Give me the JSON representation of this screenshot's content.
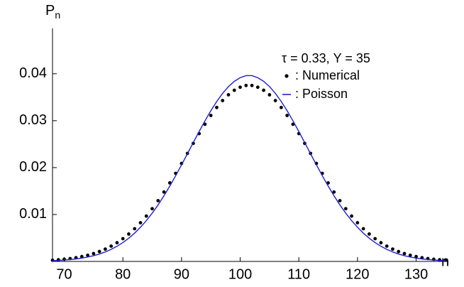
{
  "chart_data": {
    "type": "line",
    "ylabel": "P",
    "ylabel_sub": "n",
    "xlabel": "n",
    "annotation": "τ = 0.33, Y = 35",
    "x": [
      68,
      69,
      70,
      71,
      72,
      73,
      74,
      75,
      76,
      77,
      78,
      79,
      80,
      81,
      82,
      83,
      84,
      85,
      86,
      87,
      88,
      89,
      90,
      91,
      92,
      93,
      94,
      95,
      96,
      97,
      98,
      99,
      100,
      101,
      102,
      103,
      104,
      105,
      106,
      107,
      108,
      109,
      110,
      111,
      112,
      113,
      114,
      115,
      116,
      117,
      118,
      119,
      120,
      121,
      122,
      123,
      124,
      125,
      126,
      127,
      128,
      129,
      130,
      131,
      132,
      133,
      134,
      135
    ],
    "series": [
      {
        "name": ": Numerical",
        "style": "markers",
        "color": "#000000",
        "values": [
          0.00026,
          0.00035,
          0.00047,
          0.00061,
          0.0008,
          0.00103,
          0.00132,
          0.00168,
          0.00211,
          0.00263,
          0.00326,
          0.00399,
          0.00485,
          0.00584,
          0.00697,
          0.00825,
          0.00967,
          0.01124,
          0.01295,
          0.01479,
          0.01674,
          0.01878,
          0.02089,
          0.02303,
          0.02516,
          0.02724,
          0.02924,
          0.03111,
          0.03281,
          0.03429,
          0.03552,
          0.03648,
          0.03713,
          0.0375,
          0.0375,
          0.03713,
          0.03648,
          0.03552,
          0.03429,
          0.03281,
          0.03111,
          0.02924,
          0.02724,
          0.02516,
          0.02303,
          0.02089,
          0.01878,
          0.01674,
          0.01479,
          0.01295,
          0.01124,
          0.00967,
          0.00825,
          0.00697,
          0.00584,
          0.00485,
          0.00399,
          0.00326,
          0.00263,
          0.00211,
          0.00168,
          0.00132,
          0.00103,
          0.0008,
          0.00061,
          0.00047,
          0.00035,
          0.00026
        ]
      },
      {
        "name": ": Poisson",
        "style": "line",
        "color": "#1f1fd0",
        "values": [
          0.00015,
          0.00021,
          0.00029,
          0.0004,
          0.00053,
          0.00071,
          0.00094,
          0.00122,
          0.00158,
          0.00203,
          0.00257,
          0.00323,
          0.00402,
          0.00495,
          0.00603,
          0.00728,
          0.0087,
          0.01029,
          0.01205,
          0.01399,
          0.01607,
          0.01827,
          0.02058,
          0.02294,
          0.02533,
          0.02769,
          0.02997,
          0.03212,
          0.03409,
          0.03582,
          0.03727,
          0.03839,
          0.03916,
          0.0396,
          0.0396,
          0.03916,
          0.03839,
          0.03727,
          0.03582,
          0.03409,
          0.03212,
          0.02997,
          0.02769,
          0.02533,
          0.02294,
          0.02058,
          0.01827,
          0.01607,
          0.01399,
          0.01205,
          0.01029,
          0.0087,
          0.00728,
          0.00603,
          0.00495,
          0.00402,
          0.00323,
          0.00257,
          0.00203,
          0.00158,
          0.00122,
          0.00094,
          0.00071,
          0.00053,
          0.0004,
          0.00029,
          0.00021,
          0.00015
        ]
      }
    ],
    "xlim": [
      68,
      135.5
    ],
    "xticks": [
      70,
      80,
      90,
      100,
      110,
      120,
      130
    ],
    "ylim": [
      0,
      0.048
    ],
    "yticks": [
      0.01,
      0.02,
      0.03,
      0.04
    ],
    "grid": false
  }
}
